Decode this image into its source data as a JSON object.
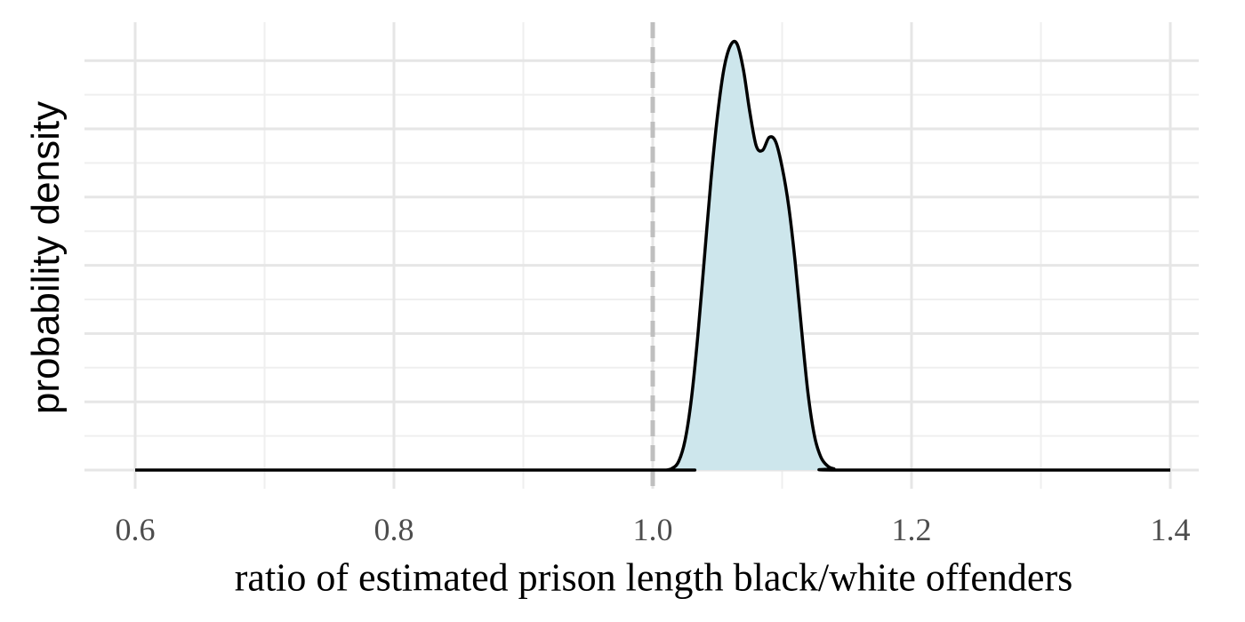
{
  "chart_data": {
    "type": "area",
    "xlabel": "ratio of estimated prison length black/white offenders",
    "ylabel": "probability density",
    "xlim": [
      0.6,
      1.4
    ],
    "ylim": [
      0,
      1.0
    ],
    "x_ticks": [
      0.6,
      0.8,
      1.0,
      1.2,
      1.4
    ],
    "x_tick_labels": [
      "0.6",
      "0.8",
      "1.0",
      "1.2",
      "1.4"
    ],
    "y_tick_labels_shown": false,
    "grid": true,
    "reference_line": {
      "x": 1.0,
      "style": "dashed",
      "color": "#bfbfbf"
    },
    "fill_color": "#cde6ec",
    "line_color": "#000000",
    "series": [
      {
        "x": [
          0.6,
          1.0,
          1.01,
          1.015,
          1.02,
          1.025,
          1.03,
          1.035,
          1.04,
          1.045,
          1.05,
          1.055,
          1.06,
          1.065,
          1.07,
          1.075,
          1.08,
          1.085,
          1.09,
          1.095,
          1.1,
          1.105,
          1.11,
          1.115,
          1.12,
          1.125,
          1.13,
          1.135,
          1.14,
          1.15,
          1.4
        ],
        "y": [
          0,
          0,
          0,
          0.004,
          0.02,
          0.07,
          0.17,
          0.32,
          0.5,
          0.68,
          0.83,
          0.94,
          0.995,
          1.0,
          0.94,
          0.84,
          0.76,
          0.75,
          0.78,
          0.77,
          0.71,
          0.62,
          0.49,
          0.33,
          0.18,
          0.08,
          0.03,
          0.01,
          0.003,
          0,
          0
        ]
      }
    ]
  }
}
